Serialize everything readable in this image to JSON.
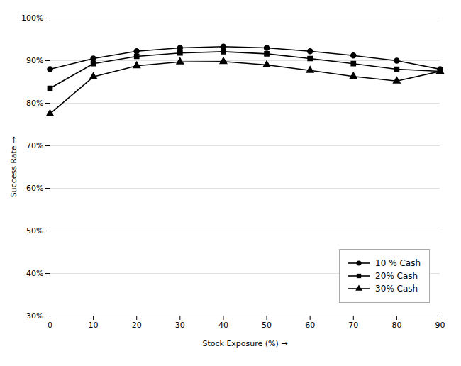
{
  "chart_data": {
    "type": "line",
    "xlabel": "Stock Exposure (%)",
    "ylabel": "Success Rate",
    "x": [
      0,
      10,
      20,
      30,
      40,
      50,
      60,
      70,
      80,
      90
    ],
    "series": [
      {
        "name": "10 % Cash",
        "color": "#000000",
        "marker": "circle",
        "values": [
          0.88,
          0.905,
          0.922,
          0.93,
          0.933,
          0.93,
          0.922,
          0.912,
          0.9,
          0.88
        ]
      },
      {
        "name": "20% Cash",
        "color": "#000000",
        "marker": "square",
        "values": [
          0.835,
          0.893,
          0.91,
          0.918,
          0.921,
          0.916,
          0.905,
          0.893,
          0.88,
          0.875
        ]
      },
      {
        "name": "30% Cash",
        "color": "#000000",
        "marker": "triangle",
        "values": [
          0.775,
          0.862,
          0.888,
          0.897,
          0.898,
          0.89,
          0.877,
          0.863,
          0.852,
          0.875
        ]
      }
    ],
    "xlim": [
      0,
      90
    ],
    "xticks": [
      0,
      10,
      20,
      30,
      40,
      50,
      60,
      70,
      80,
      90
    ],
    "ylim": [
      0.3,
      1.0
    ],
    "yticks": [
      {
        "value": 0.3,
        "label": "30%"
      },
      {
        "value": 0.4,
        "label": "40%"
      },
      {
        "value": 0.5,
        "label": "50%"
      },
      {
        "value": 0.6,
        "label": "60%"
      },
      {
        "value": 0.7,
        "label": "70%"
      },
      {
        "value": 0.8,
        "label": "80%"
      },
      {
        "value": 0.9,
        "label": "90%"
      },
      {
        "value": 1.0,
        "label": "100%"
      }
    ],
    "grid": true,
    "legend": "lower right"
  }
}
